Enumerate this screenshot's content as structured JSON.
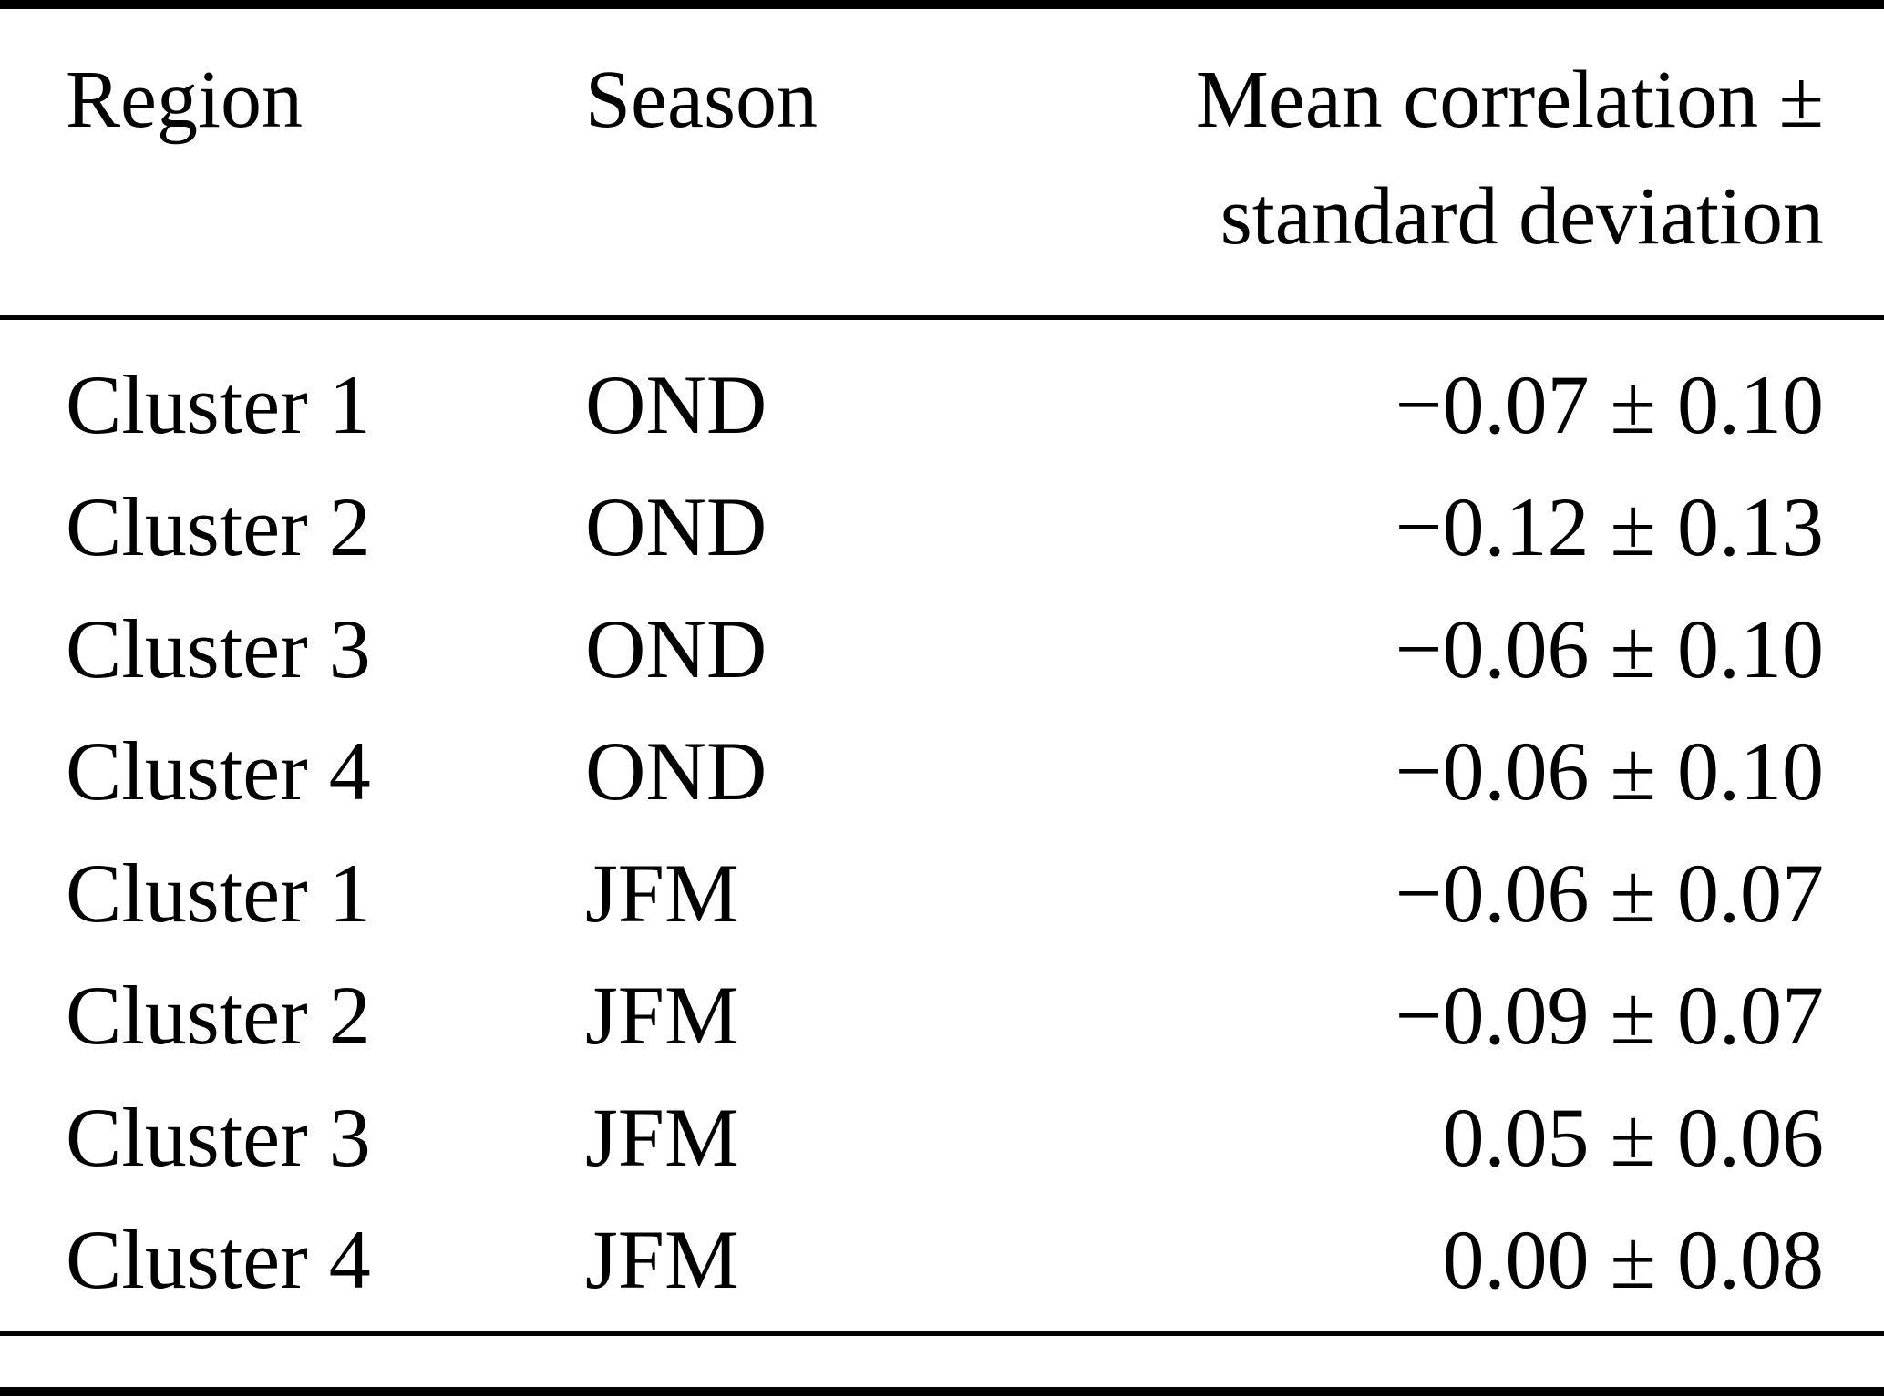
{
  "table": {
    "columns": {
      "region": "Region",
      "season": "Season",
      "value_line1": "Mean correlation ±",
      "value_line2": "standard deviation"
    },
    "rows": [
      {
        "region": "Cluster 1",
        "season": "OND",
        "value": "−0.07 ± 0.10"
      },
      {
        "region": "Cluster 2",
        "season": "OND",
        "value": "−0.12 ± 0.13"
      },
      {
        "region": "Cluster 3",
        "season": "OND",
        "value": "−0.06 ± 0.10"
      },
      {
        "region": "Cluster 4",
        "season": "OND",
        "value": "−0.06 ± 0.10"
      },
      {
        "region": "Cluster 1",
        "season": "JFM",
        "value": "−0.06 ± 0.07"
      },
      {
        "region": "Cluster 2",
        "season": "JFM",
        "value": "−0.09 ± 0.07"
      },
      {
        "region": "Cluster 3",
        "season": "JFM",
        "value": "0.05 ± 0.06"
      },
      {
        "region": "Cluster 4",
        "season": "JFM",
        "value": "0.00 ± 0.08"
      }
    ],
    "colors": {
      "text": "#000000",
      "background": "#ffffff",
      "rule": "#000000"
    }
  }
}
